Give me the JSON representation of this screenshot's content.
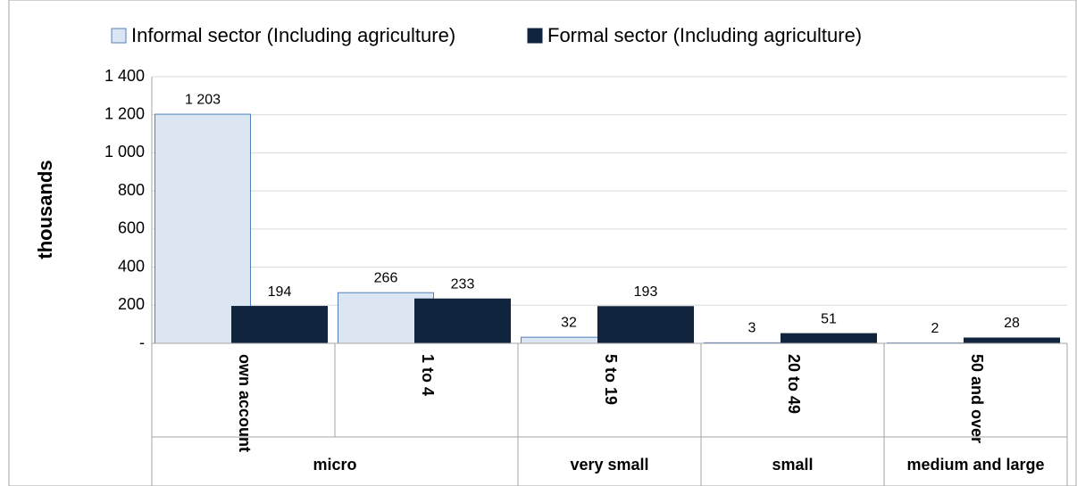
{
  "chart_data": {
    "type": "bar",
    "y_axis_label": "thousands",
    "categories": [
      "own account",
      "1 to 4",
      "5 to 19",
      "20 to 49",
      "50 and over"
    ],
    "groups": [
      {
        "name": "micro",
        "members": [
          "own account",
          "1 to 4"
        ]
      },
      {
        "name": "very small",
        "members": [
          "5 to 19"
        ]
      },
      {
        "name": "small",
        "members": [
          "20 to 49"
        ]
      },
      {
        "name": "medium and large",
        "members": [
          "50 and over"
        ]
      }
    ],
    "series": [
      {
        "name": "Informal sector (Including agriculture)",
        "color": "#dce6f2",
        "stroke": "#4f81bd",
        "values": [
          1203,
          266,
          32,
          3,
          2
        ],
        "value_labels": [
          "1 203",
          "266",
          "32",
          "3",
          "2"
        ]
      },
      {
        "name": "Formal sector (Including agriculture)",
        "color": "#10243e",
        "stroke": "#10243e",
        "values": [
          194,
          233,
          193,
          51,
          28
        ]
      }
    ],
    "ylim": [
      0,
      1400
    ],
    "yticks": [
      {
        "value": 0,
        "label": "-"
      },
      200,
      400,
      600,
      800,
      {
        "value": 1000,
        "label": "1 000"
      },
      {
        "value": 1200,
        "label": "1 200"
      },
      {
        "value": 1400,
        "label": "1 400"
      }
    ],
    "grid": true,
    "legend": "top"
  }
}
